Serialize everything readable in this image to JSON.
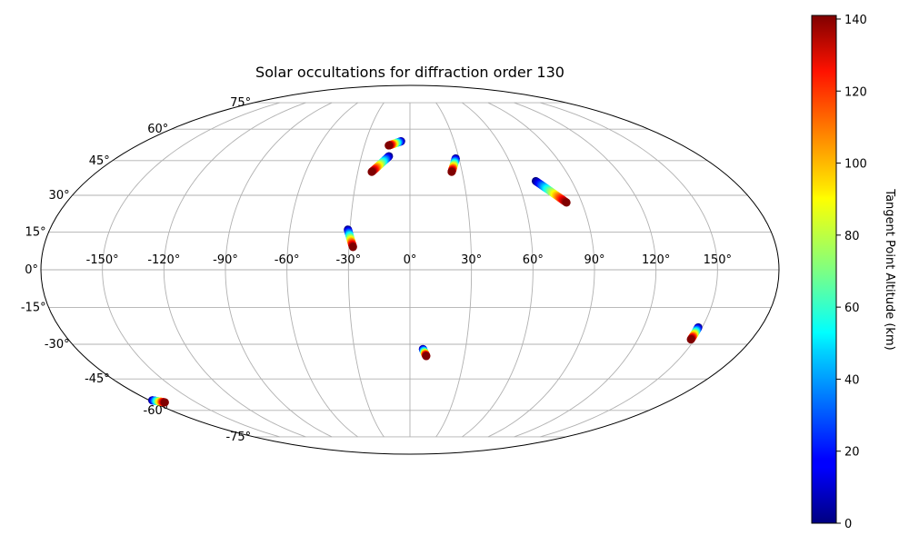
{
  "chart_data": {
    "type": "scatter",
    "projection": "mollweide",
    "title": "Solar occultations for diffraction order 130",
    "colorbar": {
      "label": "Tangent Point Altitude (km)",
      "colormap": "jet",
      "range": [
        0,
        141
      ],
      "ticks": [
        "0",
        "20",
        "40",
        "60",
        "80",
        "100",
        "120",
        "140"
      ],
      "tick_values": [
        0,
        20,
        40,
        60,
        80,
        100,
        120,
        140
      ],
      "placement": "right"
    },
    "lon_ticks": [
      "-150°",
      "-120°",
      "-90°",
      "-60°",
      "-30°",
      "0°",
      "30°",
      "60°",
      "90°",
      "120°",
      "150°"
    ],
    "lon_values": [
      -150,
      -120,
      -90,
      -60,
      -30,
      0,
      30,
      60,
      90,
      120,
      150
    ],
    "lat_ticks": [
      "75°",
      "60°",
      "45°",
      "30°",
      "15°",
      "0°",
      "-15°",
      "-30°",
      "-45°",
      "-60°",
      "-75°"
    ],
    "lat_values": [
      75,
      60,
      45,
      30,
      15,
      0,
      -15,
      -30,
      -45,
      -60,
      -75
    ],
    "grid": true,
    "tracks": [
      {
        "start": {
          "lon": -6,
          "lat": 54,
          "alt": 0
        },
        "end": {
          "lon": -14,
          "lat": 52,
          "alt": 141
        }
      },
      {
        "start": {
          "lon": -13,
          "lat": 47,
          "alt": 0
        },
        "end": {
          "lon": -22,
          "lat": 40,
          "alt": 141
        }
      },
      {
        "start": {
          "lon": 28,
          "lat": 46,
          "alt": 0
        },
        "end": {
          "lon": 24,
          "lat": 40,
          "alt": 141
        }
      },
      {
        "start": {
          "lon": 70,
          "lat": 36,
          "alt": 0
        },
        "end": {
          "lon": 82,
          "lat": 27,
          "alt": 141
        }
      },
      {
        "start": {
          "lon": -31,
          "lat": 16,
          "alt": 0
        },
        "end": {
          "lon": -28,
          "lat": 9,
          "alt": 141
        }
      },
      {
        "start": {
          "lon": 7,
          "lat": -32,
          "alt": 0
        },
        "end": {
          "lon": 9,
          "lat": -35,
          "alt": 141
        }
      },
      {
        "start": {
          "lon": 148,
          "lat": -23,
          "alt": 0
        },
        "end": {
          "lon": 148,
          "lat": -28,
          "alt": 141
        }
      },
      {
        "start": {
          "lon": -178,
          "lat": -55,
          "alt": 0
        },
        "end": {
          "lon": -172,
          "lat": -56,
          "alt": 141
        }
      }
    ]
  }
}
